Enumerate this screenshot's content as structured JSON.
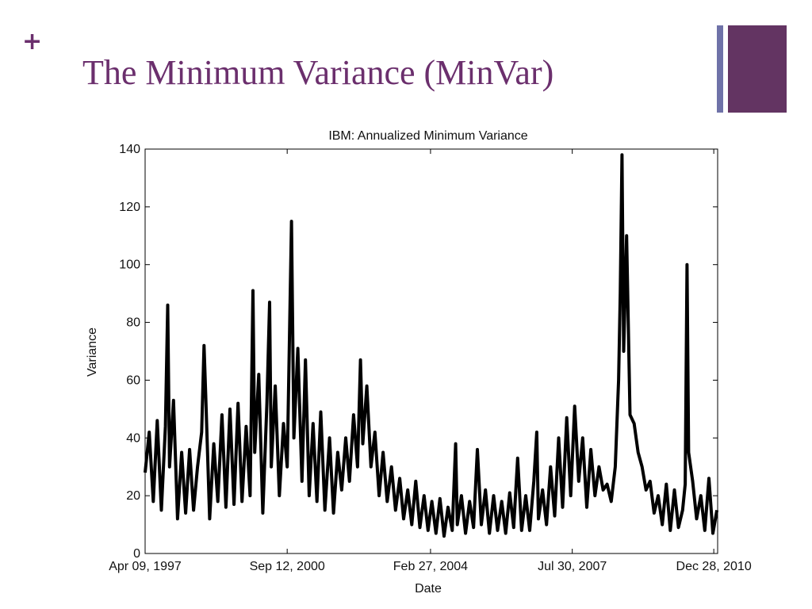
{
  "slide": {
    "bullet_symbol": "+",
    "title": "The Minimum Variance (MinVar)",
    "accent_color": "#6b2f6d",
    "deco_bar_thin_color": "#6f72a8",
    "deco_bar_thick_color": "#633462"
  },
  "chart_data": {
    "type": "line",
    "title": "IBM: Annualized Minimum Variance",
    "xlabel": "Date",
    "ylabel": "Variance",
    "ylim": [
      0,
      140
    ],
    "yticks": [
      0,
      20,
      40,
      60,
      80,
      100,
      120,
      140
    ],
    "xlim": [
      "1997-04-09",
      "2011-01-31"
    ],
    "xticks": [
      {
        "date": "1997-04-09",
        "label": "Apr 09, 1997"
      },
      {
        "date": "2000-09-12",
        "label": "Sep 12, 2000"
      },
      {
        "date": "2004-02-27",
        "label": "Feb 27, 2004"
      },
      {
        "date": "2007-07-30",
        "label": "Jul 30, 2007"
      },
      {
        "date": "2010-12-28",
        "label": "Dec 28, 2010"
      }
    ],
    "grid": false,
    "line_color": "#000000",
    "series": [
      {
        "points": [
          [
            "1997-04-09",
            28
          ],
          [
            "1997-05-15",
            42
          ],
          [
            "1997-06-20",
            18
          ],
          [
            "1997-07-25",
            46
          ],
          [
            "1997-08-30",
            15
          ],
          [
            "1997-10-05",
            44
          ],
          [
            "1997-10-25",
            86
          ],
          [
            "1997-11-10",
            30
          ],
          [
            "1997-12-15",
            53
          ],
          [
            "1998-01-20",
            12
          ],
          [
            "1998-02-25",
            35
          ],
          [
            "1998-04-01",
            14
          ],
          [
            "1998-05-06",
            36
          ],
          [
            "1998-06-10",
            15
          ],
          [
            "1998-07-15",
            30
          ],
          [
            "1998-08-20",
            42
          ],
          [
            "1998-09-10",
            72
          ],
          [
            "1998-09-25",
            55
          ],
          [
            "1998-10-30",
            12
          ],
          [
            "1998-12-05",
            38
          ],
          [
            "1999-01-10",
            18
          ],
          [
            "1999-02-15",
            48
          ],
          [
            "1999-03-22",
            16
          ],
          [
            "1999-04-27",
            50
          ],
          [
            "1999-06-01",
            17
          ],
          [
            "1999-07-07",
            52
          ],
          [
            "1999-08-11",
            18
          ],
          [
            "1999-09-16",
            44
          ],
          [
            "1999-10-21",
            20
          ],
          [
            "1999-11-15",
            91
          ],
          [
            "1999-12-01",
            35
          ],
          [
            "2000-01-05",
            62
          ],
          [
            "2000-02-10",
            14
          ],
          [
            "2000-03-17",
            52
          ],
          [
            "2000-04-10",
            87
          ],
          [
            "2000-04-25",
            30
          ],
          [
            "2000-05-30",
            58
          ],
          [
            "2000-07-05",
            20
          ],
          [
            "2000-08-10",
            45
          ],
          [
            "2000-09-12",
            30
          ],
          [
            "2000-10-20",
            115
          ],
          [
            "2000-11-10",
            40
          ],
          [
            "2000-12-15",
            71
          ],
          [
            "2001-01-20",
            25
          ],
          [
            "2001-02-20",
            67
          ],
          [
            "2001-03-25",
            20
          ],
          [
            "2001-04-28",
            45
          ],
          [
            "2001-06-01",
            18
          ],
          [
            "2001-07-05",
            49
          ],
          [
            "2001-08-10",
            15
          ],
          [
            "2001-09-20",
            40
          ],
          [
            "2001-10-25",
            14
          ],
          [
            "2001-12-01",
            35
          ],
          [
            "2002-01-05",
            22
          ],
          [
            "2002-02-10",
            40
          ],
          [
            "2002-03-15",
            25
          ],
          [
            "2002-04-20",
            48
          ],
          [
            "2002-05-25",
            30
          ],
          [
            "2002-06-20",
            67
          ],
          [
            "2002-07-10",
            38
          ],
          [
            "2002-08-15",
            58
          ],
          [
            "2002-09-20",
            30
          ],
          [
            "2002-10-25",
            42
          ],
          [
            "2002-12-01",
            20
          ],
          [
            "2003-01-05",
            35
          ],
          [
            "2003-02-10",
            18
          ],
          [
            "2003-03-20",
            30
          ],
          [
            "2003-04-25",
            15
          ],
          [
            "2003-06-01",
            26
          ],
          [
            "2003-07-05",
            12
          ],
          [
            "2003-08-10",
            22
          ],
          [
            "2003-09-15",
            10
          ],
          [
            "2003-10-20",
            25
          ],
          [
            "2003-11-25",
            9
          ],
          [
            "2004-01-01",
            20
          ],
          [
            "2004-02-05",
            8
          ],
          [
            "2004-03-10",
            18
          ],
          [
            "2004-04-15",
            7
          ],
          [
            "2004-05-20",
            19
          ],
          [
            "2004-06-25",
            6
          ],
          [
            "2004-07-30",
            16
          ],
          [
            "2004-09-05",
            8
          ],
          [
            "2004-10-05",
            38
          ],
          [
            "2004-10-20",
            10
          ],
          [
            "2004-11-25",
            20
          ],
          [
            "2005-01-01",
            7
          ],
          [
            "2005-02-05",
            18
          ],
          [
            "2005-03-12",
            9
          ],
          [
            "2005-04-15",
            36
          ],
          [
            "2005-05-20",
            10
          ],
          [
            "2005-06-25",
            22
          ],
          [
            "2005-07-30",
            7
          ],
          [
            "2005-09-05",
            20
          ],
          [
            "2005-10-10",
            8
          ],
          [
            "2005-11-15",
            18
          ],
          [
            "2005-12-20",
            7
          ],
          [
            "2006-01-25",
            21
          ],
          [
            "2006-03-01",
            9
          ],
          [
            "2006-04-05",
            33
          ],
          [
            "2006-05-10",
            8
          ],
          [
            "2006-06-15",
            20
          ],
          [
            "2006-07-20",
            8
          ],
          [
            "2006-08-25",
            25
          ],
          [
            "2006-09-20",
            42
          ],
          [
            "2006-10-05",
            12
          ],
          [
            "2006-11-10",
            22
          ],
          [
            "2006-12-15",
            10
          ],
          [
            "2007-01-20",
            30
          ],
          [
            "2007-02-25",
            13
          ],
          [
            "2007-04-01",
            40
          ],
          [
            "2007-05-06",
            16
          ],
          [
            "2007-06-11",
            47
          ],
          [
            "2007-07-16",
            20
          ],
          [
            "2007-08-20",
            51
          ],
          [
            "2007-09-25",
            25
          ],
          [
            "2007-10-30",
            40
          ],
          [
            "2007-12-05",
            16
          ],
          [
            "2008-01-10",
            36
          ],
          [
            "2008-02-15",
            20
          ],
          [
            "2008-03-22",
            30
          ],
          [
            "2008-04-27",
            22
          ],
          [
            "2008-06-01",
            24
          ],
          [
            "2008-07-07",
            18
          ],
          [
            "2008-08-12",
            30
          ],
          [
            "2008-09-10",
            60
          ],
          [
            "2008-09-25",
            90
          ],
          [
            "2008-10-10",
            138
          ],
          [
            "2008-10-25",
            70
          ],
          [
            "2008-11-20",
            110
          ],
          [
            "2008-12-20",
            48
          ],
          [
            "2009-01-25",
            45
          ],
          [
            "2009-03-01",
            35
          ],
          [
            "2009-04-05",
            30
          ],
          [
            "2009-05-10",
            22
          ],
          [
            "2009-06-15",
            25
          ],
          [
            "2009-07-20",
            14
          ],
          [
            "2009-08-25",
            20
          ],
          [
            "2009-09-30",
            10
          ],
          [
            "2009-11-05",
            24
          ],
          [
            "2009-12-10",
            8
          ],
          [
            "2010-01-15",
            22
          ],
          [
            "2010-02-20",
            9
          ],
          [
            "2010-03-28",
            15
          ],
          [
            "2010-04-20",
            24
          ],
          [
            "2010-05-06",
            100
          ],
          [
            "2010-05-20",
            35
          ],
          [
            "2010-06-25",
            25
          ],
          [
            "2010-07-30",
            12
          ],
          [
            "2010-09-05",
            20
          ],
          [
            "2010-10-10",
            8
          ],
          [
            "2010-11-15",
            26
          ],
          [
            "2010-12-20",
            7
          ],
          [
            "2011-01-25",
            15
          ]
        ]
      }
    ]
  }
}
